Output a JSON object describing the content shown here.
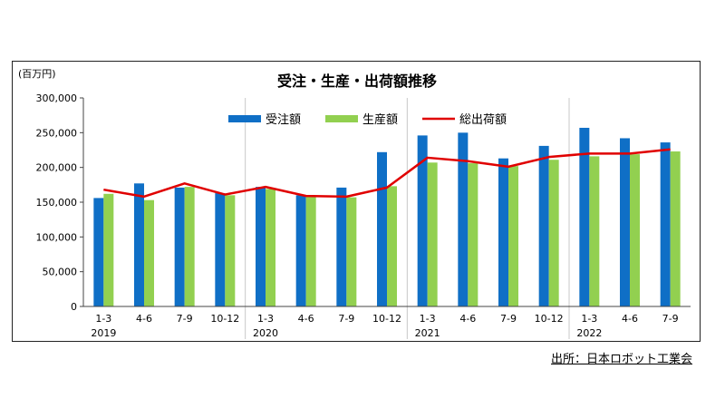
{
  "source": "出所：日本ロボット工業会",
  "chart_data": {
    "type": "bar",
    "title": "受注・生産・出荷額推移",
    "unit_label": "(百万円)",
    "categories": [
      "1-3",
      "4-6",
      "7-9",
      "10-12",
      "1-3",
      "4-6",
      "7-9",
      "10-12",
      "1-3",
      "4-6",
      "7-9",
      "10-12",
      "1-3",
      "4-6",
      "7-9"
    ],
    "years": [
      {
        "label": "2019",
        "index": 0
      },
      {
        "label": "2020",
        "index": 4
      },
      {
        "label": "2021",
        "index": 8
      },
      {
        "label": "2022",
        "index": 12
      }
    ],
    "ylim": [
      0,
      300000
    ],
    "yticks": [
      {
        "value": 0,
        "label": "0"
      },
      {
        "value": 50000,
        "label": "50,000"
      },
      {
        "value": 100000,
        "label": "100,000"
      },
      {
        "value": 150000,
        "label": "150,000"
      },
      {
        "value": 200000,
        "label": "200,000"
      },
      {
        "value": 250000,
        "label": "250,000"
      },
      {
        "value": 300000,
        "label": "300,000"
      }
    ],
    "legend_position": "top",
    "grid": false,
    "series": [
      {
        "name": "受注額",
        "type": "bar",
        "color": "#0f6fc6",
        "values": [
          156000,
          177000,
          171000,
          163000,
          172000,
          160000,
          171000,
          222000,
          246000,
          250000,
          213000,
          231000,
          257000,
          242000,
          236000
        ]
      },
      {
        "name": "生産額",
        "type": "bar",
        "color": "#92d050",
        "values": [
          162000,
          153000,
          172000,
          160000,
          169000,
          158000,
          157000,
          173000,
          207000,
          206000,
          202000,
          211000,
          216000,
          219000,
          223000
        ]
      },
      {
        "name": "総出荷額",
        "type": "line",
        "color": "#e00000",
        "values": [
          168000,
          158000,
          177000,
          161000,
          172000,
          159000,
          158000,
          171000,
          214000,
          209000,
          201000,
          215000,
          220000,
          220000,
          226000
        ]
      }
    ]
  }
}
